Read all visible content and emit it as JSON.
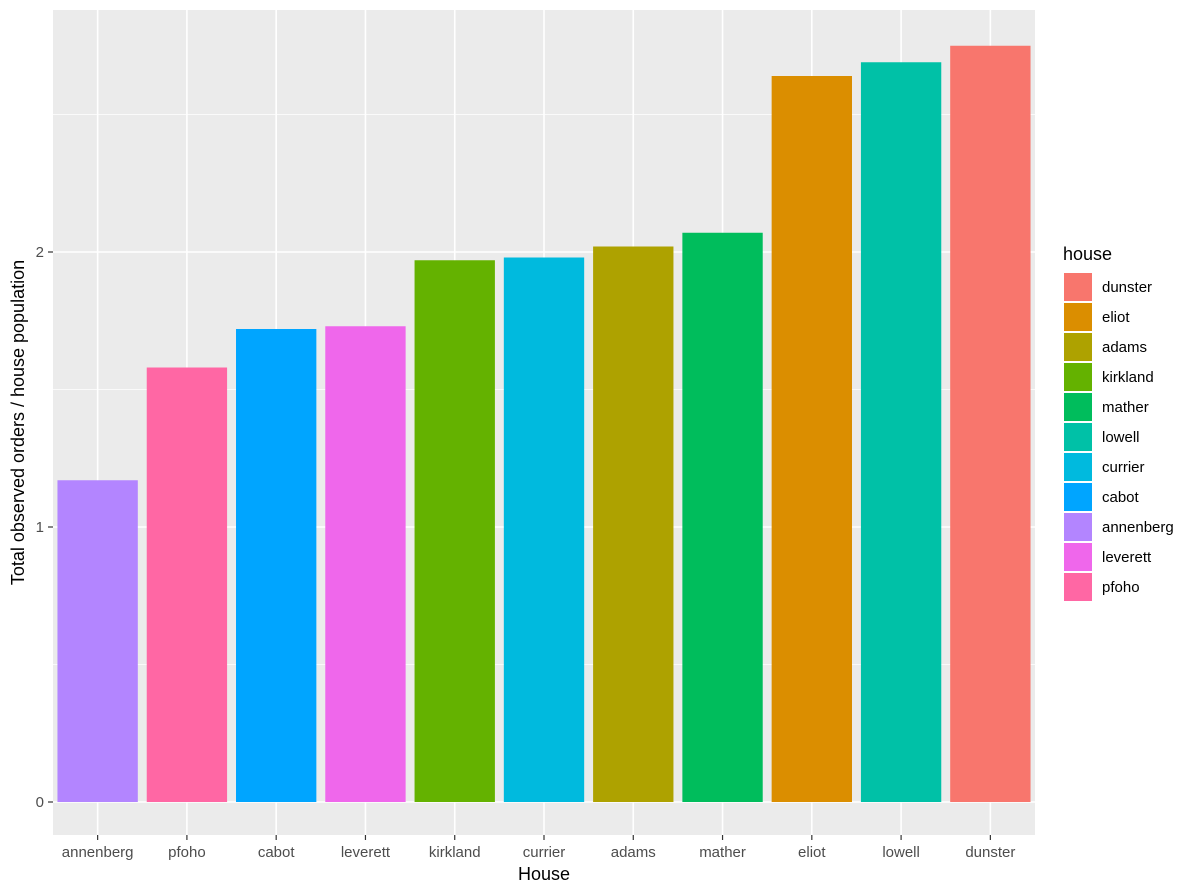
{
  "chart_data": {
    "type": "bar",
    "xlabel": "House",
    "ylabel": "Total observed orders / house population",
    "categories": [
      "annenberg",
      "pfoho",
      "cabot",
      "leverett",
      "kirkland",
      "currier",
      "adams",
      "mather",
      "eliot",
      "lowell",
      "dunster"
    ],
    "values": [
      1.17,
      1.58,
      1.72,
      1.73,
      1.97,
      1.98,
      2.02,
      2.07,
      2.64,
      2.69,
      2.75
    ],
    "colors": [
      "#B385FF",
      "#FF67A4",
      "#00A5FF",
      "#EF67EB",
      "#64B200",
      "#00BADE",
      "#AEA200",
      "#00BD5C",
      "#DB8E00",
      "#00C1A7",
      "#F8766D"
    ],
    "ylim": [
      -0.12,
      2.88
    ],
    "yticks": [
      0,
      1,
      2
    ],
    "grid": true,
    "legend": {
      "title": "house",
      "placement": "right",
      "entries": [
        {
          "label": "dunster",
          "color": "#F8766D"
        },
        {
          "label": "eliot",
          "color": "#DB8E00"
        },
        {
          "label": "adams",
          "color": "#AEA200"
        },
        {
          "label": "kirkland",
          "color": "#64B200"
        },
        {
          "label": "mather",
          "color": "#00BD5C"
        },
        {
          "label": "lowell",
          "color": "#00C1A7"
        },
        {
          "label": "currier",
          "color": "#00BADE"
        },
        {
          "label": "cabot",
          "color": "#00A5FF"
        },
        {
          "label": "annenberg",
          "color": "#B385FF"
        },
        {
          "label": "leverett",
          "color": "#EF67EB"
        },
        {
          "label": "pfoho",
          "color": "#FF67A4"
        }
      ]
    }
  }
}
